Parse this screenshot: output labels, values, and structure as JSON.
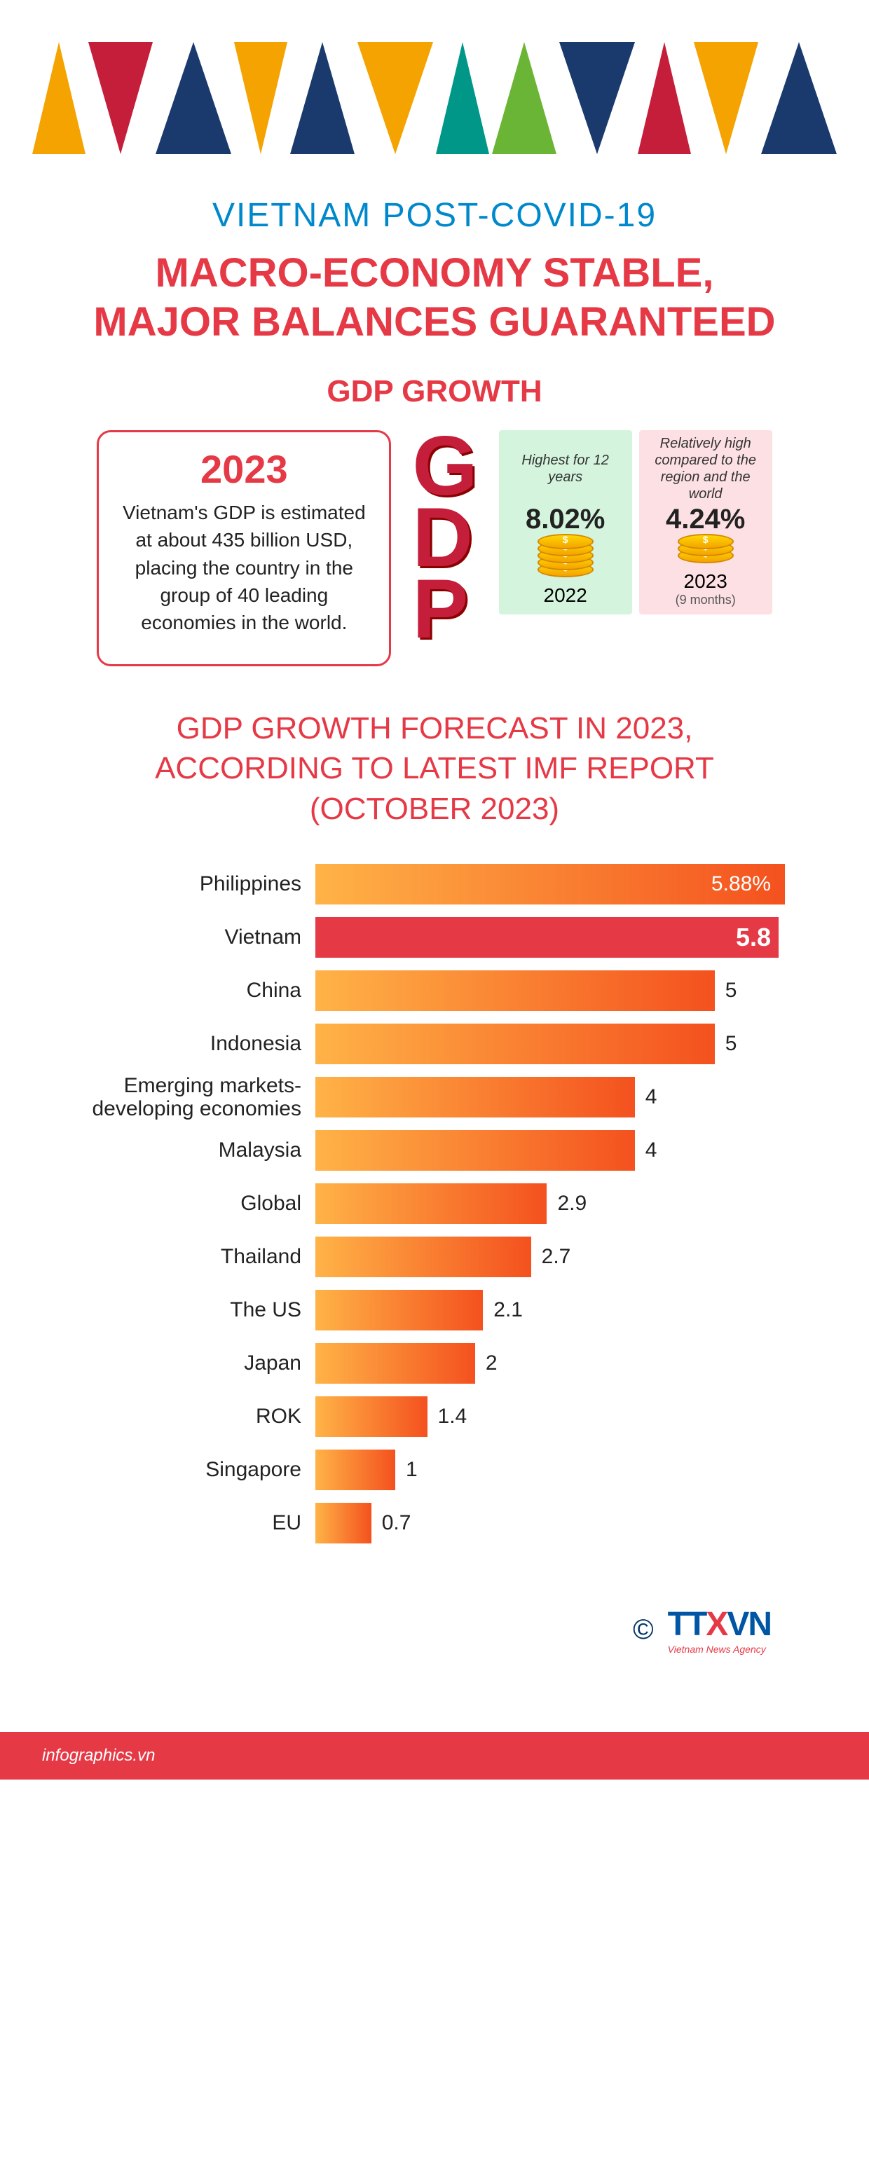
{
  "header": {
    "triangle_colors": [
      "#f4a300",
      "#c41e3a",
      "#1a3a6e",
      "#f4a300",
      "#1a3a6e",
      "#f4a300",
      "#009688",
      "#6bb536",
      "#1a3a6e",
      "#c41e3a",
      "#f4a300",
      "#1a3a6e"
    ],
    "triangle_directions": [
      "up",
      "down",
      "up",
      "down",
      "up",
      "down",
      "up",
      "up",
      "down",
      "up",
      "down",
      "up"
    ]
  },
  "subtitle": "VIETNAM POST-COVID-19",
  "title_line1": "MACRO-ECONOMY STABLE,",
  "title_line2": "MAJOR BALANCES GUARANTEED",
  "gdp_section_title": "GDP GROWTH",
  "gdp_box": {
    "year": "2023",
    "description": "Vietnam's GDP is estimated at about 435 billion USD, placing the country in the group of 40 leading economies in the world."
  },
  "gdp_logo": {
    "g": "G",
    "d": "D",
    "p": "P"
  },
  "stats": [
    {
      "bg": "#d4f4dd",
      "note": "Highest for 12 years",
      "pct": "8.02%",
      "coins": 5,
      "year": "2022",
      "sub": ""
    },
    {
      "bg": "#fde0e4",
      "note": "Relatively high compared to the region and the world",
      "pct": "4.24%",
      "coins": 3,
      "year": "2023",
      "sub": "(9 months)"
    }
  ],
  "forecast_title_line1": "GDP GROWTH FORECAST IN 2023,",
  "forecast_title_line2": "ACCORDING TO LATEST IMF REPORT",
  "forecast_title_line3": "(OCTOBER 2023)",
  "chart": {
    "max_value": 5.88,
    "bar_gradient_normal": [
      "#ffb347",
      "#f4511e"
    ],
    "bar_color_highlight": "#e63946",
    "bars": [
      {
        "label": "Philippines",
        "value": 5.88,
        "display": "5.88%",
        "highlight": false,
        "value_pos": "inside"
      },
      {
        "label": "Vietnam",
        "value": 5.8,
        "display": "5.8",
        "highlight": true,
        "value_pos": "inside",
        "bold": true
      },
      {
        "label": "China",
        "value": 5,
        "display": "5",
        "highlight": false,
        "value_pos": "outside"
      },
      {
        "label": "Indonesia",
        "value": 5,
        "display": "5",
        "highlight": false,
        "value_pos": "outside"
      },
      {
        "label": "Emerging markets-developing economies",
        "value": 4,
        "display": "4",
        "highlight": false,
        "value_pos": "outside"
      },
      {
        "label": "Malaysia",
        "value": 4,
        "display": "4",
        "highlight": false,
        "value_pos": "outside"
      },
      {
        "label": "Global",
        "value": 2.9,
        "display": "2.9",
        "highlight": false,
        "value_pos": "outside"
      },
      {
        "label": "Thailand",
        "value": 2.7,
        "display": "2.7",
        "highlight": false,
        "value_pos": "outside"
      },
      {
        "label": "The US",
        "value": 2.1,
        "display": "2.1",
        "highlight": false,
        "value_pos": "outside"
      },
      {
        "label": "Japan",
        "value": 2,
        "display": "2",
        "highlight": false,
        "value_pos": "outside"
      },
      {
        "label": "ROK",
        "value": 1.4,
        "display": "1.4",
        "highlight": false,
        "value_pos": "outside"
      },
      {
        "label": "Singapore",
        "value": 1,
        "display": "1",
        "highlight": false,
        "value_pos": "outside"
      },
      {
        "label": "EU",
        "value": 0.7,
        "display": "0.7",
        "highlight": false,
        "value_pos": "outside"
      }
    ]
  },
  "attribution": {
    "copyright": "©",
    "logo_t": "TT",
    "logo_x": "X",
    "logo_vn": "VN",
    "logo_sub": "Vietnam News Agency"
  },
  "footer_text": "infographics.vn"
}
